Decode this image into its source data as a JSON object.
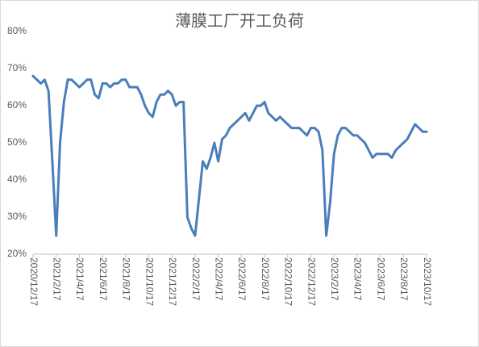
{
  "chart_data": {
    "type": "line",
    "title": "薄膜工厂开工负荷",
    "categories": [
      "2020/12/17",
      null,
      null,
      null,
      null,
      null,
      "2021/2/17",
      null,
      null,
      null,
      null,
      null,
      "2021/4/17",
      null,
      null,
      null,
      null,
      null,
      "2021/6/17",
      null,
      null,
      null,
      null,
      null,
      "2021/8/17",
      null,
      null,
      null,
      null,
      null,
      "2021/10/17",
      null,
      null,
      null,
      null,
      null,
      "2021/12/17",
      null,
      null,
      null,
      null,
      null,
      "2022/2/17",
      null,
      null,
      null,
      null,
      null,
      "2022/4/17",
      null,
      null,
      null,
      null,
      null,
      "2022/6/17",
      null,
      null,
      null,
      null,
      null,
      "2022/8/17",
      null,
      null,
      null,
      null,
      null,
      "2022/10/17",
      null,
      null,
      null,
      null,
      null,
      "2022/12/17",
      null,
      null,
      null,
      null,
      null,
      "2023/2/17",
      null,
      null,
      null,
      null,
      null,
      "2023/4/17",
      null,
      null,
      null,
      null,
      null,
      "2023/6/17",
      null,
      null,
      null,
      null,
      null,
      "2023/8/17",
      null,
      null,
      null,
      null,
      null,
      "2023/10/17"
    ],
    "series": [
      {
        "color": "#4a7ebb",
        "values": [
          68,
          67,
          66,
          67,
          64,
          45,
          25,
          50,
          61,
          67,
          67,
          66,
          65,
          66,
          67,
          67,
          63,
          62,
          66,
          66,
          65,
          66,
          66,
          67,
          67,
          65,
          65,
          65,
          63,
          60,
          58,
          57,
          61,
          63,
          63,
          64,
          63,
          60,
          61,
          61,
          30,
          27,
          25,
          35,
          45,
          43,
          46,
          50,
          45,
          51,
          52,
          54,
          55,
          56,
          57,
          58,
          56,
          58,
          60,
          60,
          61,
          58,
          57,
          56,
          57,
          56,
          55,
          54,
          54,
          54,
          53,
          52,
          54,
          54,
          53,
          48,
          25,
          34,
          47,
          52,
          54,
          54,
          53,
          52,
          52,
          51,
          50,
          48,
          46,
          47,
          47,
          47,
          47,
          46,
          48,
          49,
          50,
          51,
          53,
          55,
          54,
          53,
          53
        ]
      }
    ],
    "ylim": [
      20,
      80
    ],
    "yticks": [
      {
        "value": 20,
        "label": "20%"
      },
      {
        "value": 30,
        "label": "30%"
      },
      {
        "value": 40,
        "label": "40%"
      },
      {
        "value": 50,
        "label": "50%"
      },
      {
        "value": 60,
        "label": "60%"
      },
      {
        "value": 70,
        "label": "70%"
      },
      {
        "value": 80,
        "label": "80%"
      }
    ],
    "grid": false
  }
}
